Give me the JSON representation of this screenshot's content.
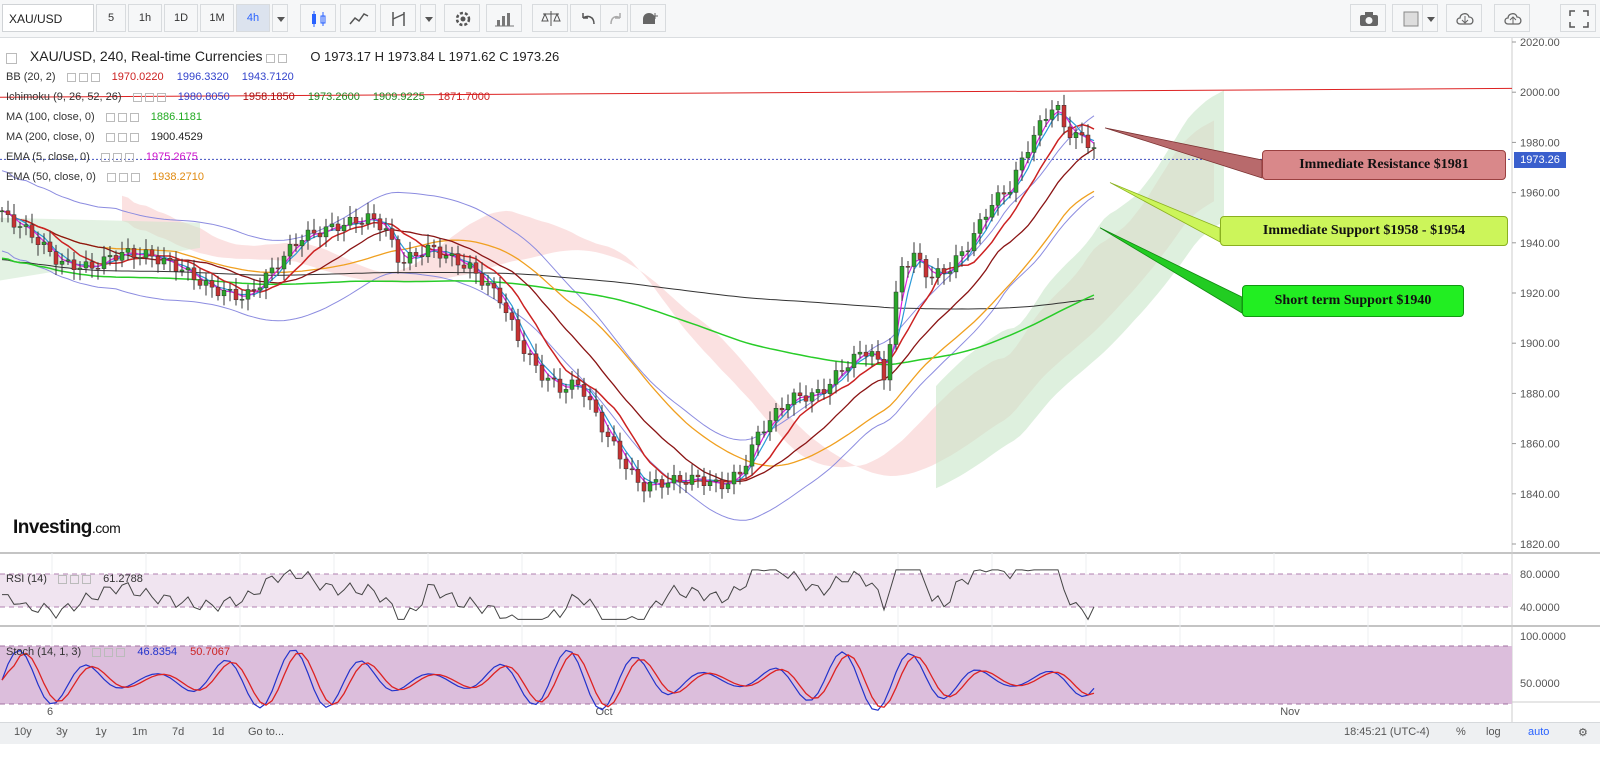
{
  "toolbar": {
    "symbol": "XAU/USD",
    "intervals": [
      "5",
      "1h",
      "1D",
      "1M",
      "4h"
    ],
    "active_interval": "4h"
  },
  "legend": {
    "title": "XAU/USD, 240, Real-time Currencies",
    "ohlc": "O 1973.17   H 1973.84   L 1971.62   C 1973.26",
    "bb": {
      "name": "BB (20, 2)",
      "v1": "1970.0220",
      "v2": "1996.3320",
      "v3": "1943.7120"
    },
    "ichimoku": {
      "name": "Ichimoku (9, 26, 52, 26)",
      "v1": "1980.8050",
      "v2": "1958.1850",
      "v3": "1973.2600",
      "v4": "1909.9225",
      "v5": "1871.7000"
    },
    "ma100": {
      "name": "MA (100, close, 0)",
      "v": "1886.1181"
    },
    "ma200": {
      "name": "MA (200, close, 0)",
      "v": "1900.4529"
    },
    "ema5": {
      "name": "EMA (5, close, 0)",
      "v": "1975.2675"
    },
    "ema50": {
      "name": "EMA (50, close, 0)",
      "v": "1938.2710"
    }
  },
  "rsi": {
    "name": "RSI (14)",
    "v": "61.2788"
  },
  "stoch": {
    "name": "Stoch (14, 1, 3)",
    "v1": "46.8354",
    "v2": "50.7067"
  },
  "callouts": {
    "resistance": "Immediate Resistance $1981",
    "support": "Immediate Support $1958 - $1954",
    "short_support": "Short term Support $1940"
  },
  "logo": {
    "main": "Investing",
    "suffix": ".com"
  },
  "price_tag": "1973.26",
  "axis": {
    "price_ticks": [
      "2020.00",
      "2000.00",
      "1980.00",
      "1960.00",
      "1940.00",
      "1920.00",
      "1900.00",
      "1880.00",
      "1860.00",
      "1840.00",
      "1820.00"
    ],
    "rsi_ticks": [
      "80.0000",
      "40.0000"
    ],
    "stoch_ticks": [
      "100.0000",
      "50.0000"
    ],
    "time_labels": [
      "6",
      "Oct",
      "Nov"
    ]
  },
  "bottom": {
    "ranges": [
      "10y",
      "3y",
      "1y",
      "1m",
      "7d",
      "1d",
      "Go to..."
    ],
    "clock": "18:45:21 (UTC-4)",
    "pct": "%",
    "log": "log",
    "auto": "auto"
  },
  "colors": {
    "resistance_fill": "#d9888a",
    "support_fill": "#ccf55a",
    "short_support_fill": "#22ee22",
    "bb": "#8c8ce0",
    "ema5": "#e020e0",
    "ema50": "#f0a020",
    "ma100": "#28cc28",
    "ma200": "#333333",
    "ichimoku_red": "#cc2222",
    "ichimoku_dark": "#8a1414"
  }
}
